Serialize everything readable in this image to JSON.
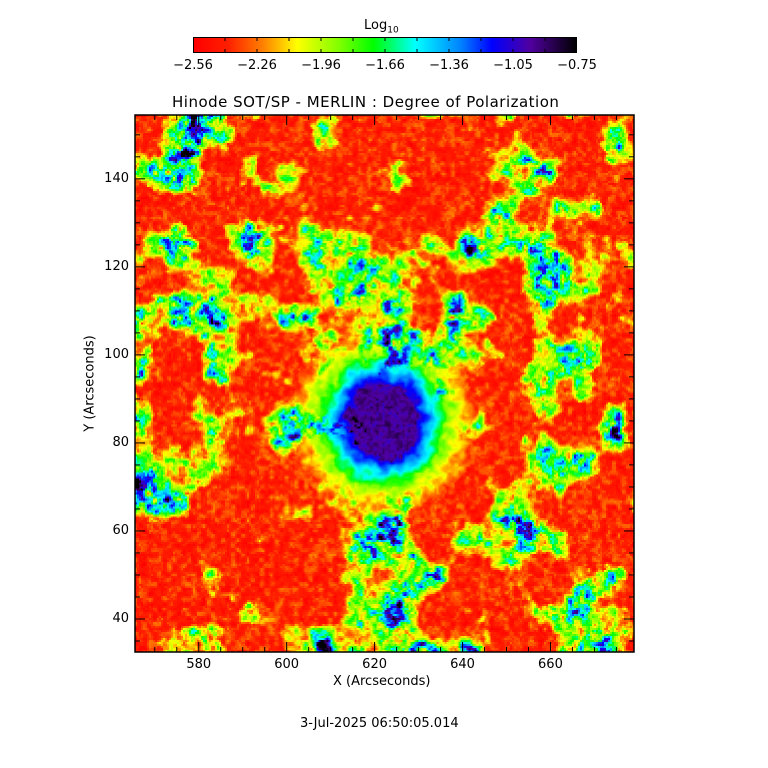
{
  "chart_data": {
    "type": "heatmap",
    "title": "Hinode SOT/SP - MERLIN : Degree of Polarization",
    "xlabel": "X (Arcseconds)",
    "ylabel": "Y (Arcseconds)",
    "xlim": [
      565.5,
      679
    ],
    "ylim": [
      32.5,
      154.5
    ],
    "xticks": [
      580,
      600,
      620,
      640,
      660
    ],
    "yticks": [
      40,
      60,
      80,
      100,
      120,
      140
    ],
    "colorbar": {
      "title": "Log",
      "title_subscript": "10",
      "range": [
        -2.56,
        -0.75
      ],
      "tick_labels": [
        "-2.56",
        "-2.26",
        "-1.96",
        "-1.66",
        "-1.36",
        "-1.05",
        "-0.75"
      ],
      "colormap_stops": [
        "#ff0000",
        "#ff2000",
        "#ff8000",
        "#ffff00",
        "#80ff00",
        "#00ff00",
        "#00ffff",
        "#0080ff",
        "#0000ff",
        "#5000a0",
        "#000000"
      ]
    },
    "features": {
      "sunspot_center": [
        622,
        85
      ],
      "umbra_radius_arcsec": 8,
      "penumbra_radius_arcsec": 14
    },
    "timestamp": "3-Jul-2025 06:50:05.014"
  }
}
